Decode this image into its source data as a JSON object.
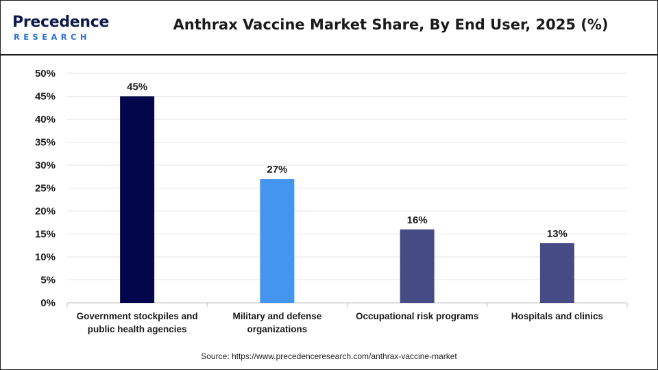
{
  "brand": {
    "logo_top": "Precedence",
    "logo_bottom": "RESEARCH"
  },
  "title": "Anthrax Vaccine Market Share, By End User, 2025 (%)",
  "source": "Source: https://www.precedenceresearch.com/anthrax-vaccine-market",
  "chart_data": {
    "type": "bar",
    "title": "Anthrax Vaccine Market Share, By End User, 2025 (%)",
    "xlabel": "",
    "ylabel": "",
    "categories": [
      [
        "Government stockpiles and",
        "public health agencies"
      ],
      [
        "Military and defense",
        "organizations"
      ],
      [
        "Occupational risk programs"
      ],
      [
        "Hospitals and clinics"
      ]
    ],
    "values": [
      45,
      27,
      16,
      13
    ],
    "data_labels": [
      "45%",
      "27%",
      "16%",
      "13%"
    ],
    "bar_colors": [
      "#03064a",
      "#4495f0",
      "#464a85",
      "#464a85"
    ],
    "ylim": [
      0,
      50
    ],
    "yticks": [
      0,
      5,
      10,
      15,
      20,
      25,
      30,
      35,
      40,
      45,
      50
    ],
    "ytick_labels": [
      "0%",
      "5%",
      "10%",
      "15%",
      "20%",
      "25%",
      "30%",
      "35%",
      "40%",
      "45%",
      "50%"
    ],
    "grid": true,
    "legend": "none"
  }
}
